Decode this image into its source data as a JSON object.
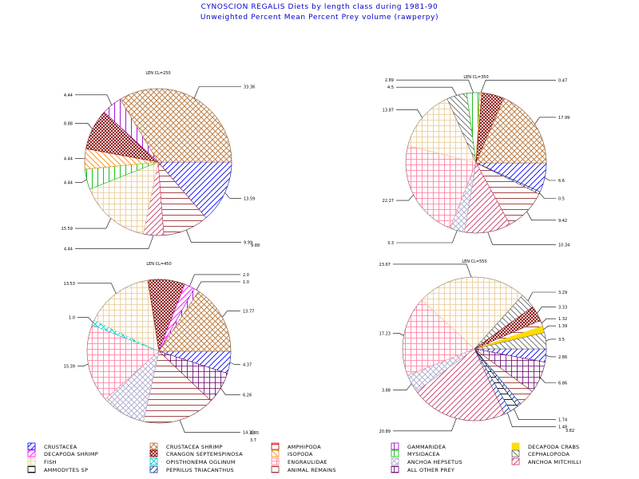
{
  "title": "CYNOSCION REGALIS Diets by length class during 1981-90",
  "subtitle": "Unweighted Percent Mean Percent Prey volume (rawperpy)",
  "colors": {
    "title": "#0000cc",
    "crustacea": "#0000ff",
    "crustacea_shrimp": "#b87333",
    "amphipoda": "#cc0000",
    "gammaridea": "#9900cc",
    "decapoda_crabs": "#ffdd00",
    "decapoda_shrimp": "#ff00ff",
    "crangon": "#800000",
    "isopoda": "#ff8800",
    "mysidacea": "#00bb00",
    "cephalopoda": "#666666",
    "fish": "#e8c890",
    "opisthonema": "#00cccc",
    "engraulidae": "#ff7799",
    "anchoa_hepsetus": "#aaaacc",
    "anchoa_mitchilli": "#cc3366",
    "ammodytes": "#000000",
    "peprilus": "#003399",
    "animal_remains": "#993333",
    "all_other": "#660066"
  },
  "chart_data": [
    {
      "type": "pie",
      "title": "LEN CL=250",
      "slices": [
        {
          "category": "crustacea",
          "value": 13.59,
          "label": "13.59"
        },
        {
          "category": "animal_remains",
          "value": 9.99,
          "label": "9.99"
        },
        {
          "category": "anchoa_mitchilli",
          "value": 4.44,
          "label": "4.44"
        },
        {
          "category": "fish",
          "value": 15.59,
          "label": "15.59"
        },
        {
          "category": "mysidacea",
          "value": 4.44,
          "label": "4.44"
        },
        {
          "category": "isopoda",
          "value": 4.44,
          "label": "4.44"
        },
        {
          "category": "crangon",
          "value": 8.88,
          "label": "8.88"
        },
        {
          "category": "gammaridea",
          "value": 4.44,
          "label": "4.44"
        },
        {
          "category": "crustacea_shrimp",
          "value": 33.36,
          "label": "33.36"
        }
      ],
      "slice_labels_extra": [
        "9.88"
      ]
    },
    {
      "type": "pie",
      "title": "LEN CL=350",
      "slices": [
        {
          "category": "crustacea",
          "value": 6.6,
          "label": "6.6"
        },
        {
          "category": "peprilus",
          "value": 0.5,
          "label": "0.5"
        },
        {
          "category": "animal_remains",
          "value": 9.42,
          "label": "9.42"
        },
        {
          "category": "anchoa_mitchilli",
          "value": 10.34,
          "label": "10.34"
        },
        {
          "category": "anchoa_hepsetus",
          "value": 3.3,
          "label": "3.3"
        },
        {
          "category": "engraulidae",
          "value": 22.27,
          "label": "22.27"
        },
        {
          "category": "fish",
          "value": 13.87,
          "label": "13.87"
        },
        {
          "category": "cephalopoda",
          "value": 4.5,
          "label": "4.5"
        },
        {
          "category": "mysidacea",
          "value": 2.89,
          "label": "2.89"
        },
        {
          "category": "isopoda",
          "value": 0.47,
          "label": "0.47"
        },
        {
          "category": "crangon",
          "value": 5.0,
          "label": ""
        },
        {
          "category": "crustacea_shrimp",
          "value": 17.99,
          "label": "17.99"
        }
      ]
    },
    {
      "type": "pie",
      "title": "LEN CL=450",
      "slices": [
        {
          "category": "crustacea",
          "value": 4.37,
          "label": "4.37"
        },
        {
          "category": "all_other",
          "value": 6.26,
          "label": "6.26"
        },
        {
          "category": "animal_remains",
          "value": 14.33,
          "label": "14.33"
        },
        {
          "category": "anchoa_hepsetus",
          "value": 8.7,
          "label": ""
        },
        {
          "category": "engraulidae",
          "value": 15.39,
          "label": "15.39"
        },
        {
          "category": "opisthonema",
          "value": 1.0,
          "label": "1.0"
        },
        {
          "category": "fish",
          "value": 13.53,
          "label": "13.53"
        },
        {
          "category": "crangon",
          "value": 7.3,
          "label": ""
        },
        {
          "category": "decapoda_shrimp",
          "value": 2.0,
          "label": "2.0"
        },
        {
          "category": "gammaridea",
          "value": 1.0,
          "label": "1.0"
        },
        {
          "category": "crustacea_shrimp",
          "value": 13.77,
          "label": "13.77"
        }
      ],
      "slice_labels_extra": [
        "8.85",
        "3.7"
      ]
    },
    {
      "type": "pie",
      "title": "LEN CL=550",
      "slices": [
        {
          "category": "crustacea",
          "value": 2.86,
          "label": "2.86"
        },
        {
          "category": "all_other",
          "value": 6.86,
          "label": "6.86"
        },
        {
          "category": "animal_remains",
          "value": 3.6,
          "label": ""
        },
        {
          "category": "peprilus",
          "value": 0.9,
          "label": ""
        },
        {
          "category": "ammodytes",
          "value": 1.74,
          "label": "1.74"
        },
        {
          "category": "peprilus",
          "value": 1.48,
          "label": "1.48"
        },
        {
          "category": "anchoa_mitchilli",
          "value": 20.89,
          "label": "20.89"
        },
        {
          "category": "anchoa_hepsetus",
          "value": 3.88,
          "label": "3.88"
        },
        {
          "category": "engraulidae",
          "value": 17.23,
          "label": "17.23"
        },
        {
          "category": "fish",
          "value": 23.67,
          "label": "23.67"
        },
        {
          "category": "cephalopoda",
          "value": 3.29,
          "label": "3.29"
        },
        {
          "category": "crangon",
          "value": 3.33,
          "label": "3.33"
        },
        {
          "category": "animal_remains",
          "value": 1.32,
          "label": "1.32"
        },
        {
          "category": "decapoda_crabs",
          "value": 1.39,
          "label": "1.39"
        },
        {
          "category": "cephalopoda",
          "value": 3.5,
          "label": "3.5"
        }
      ],
      "slice_labels_extra": [
        "3.82"
      ]
    }
  ],
  "legend": [
    {
      "key": "crustacea",
      "label": "CRUSTACEA",
      "pattern": "diag"
    },
    {
      "key": "crustacea_shrimp",
      "label": "CRUSTACEA SHRIMP",
      "pattern": "cross"
    },
    {
      "key": "amphipoda",
      "label": "AMPHIPODA",
      "pattern": "horiz"
    },
    {
      "key": "gammaridea",
      "label": "GAMMARIDEA",
      "pattern": "vert"
    },
    {
      "key": "decapoda_crabs",
      "label": "DECAPODA CRABS",
      "pattern": "solid"
    },
    {
      "key": "decapoda_shrimp",
      "label": "DECAPODA SHRIMP",
      "pattern": "diag"
    },
    {
      "key": "crangon",
      "label": "CRANGON SEPTEMSPINOSA",
      "pattern": "xdense"
    },
    {
      "key": "isopoda",
      "label": "ISOPODA",
      "pattern": "diag2"
    },
    {
      "key": "mysidacea",
      "label": "MYSIDACEA",
      "pattern": "vert"
    },
    {
      "key": "cephalopoda",
      "label": "CEPHALOPODA",
      "pattern": "diag2"
    },
    {
      "key": "fish",
      "label": "FISH",
      "pattern": "grid"
    },
    {
      "key": "opisthonema",
      "label": "OPISTHONEMA OGLINUM",
      "pattern": "cross"
    },
    {
      "key": "engraulidae",
      "label": "ENGRAULIDAE",
      "pattern": "grid"
    },
    {
      "key": "anchoa_hepsetus",
      "label": "ANCHOA HEPSETUS",
      "pattern": "cross"
    },
    {
      "key": "anchoa_mitchilli",
      "label": "ANCHOA MITCHILLI",
      "pattern": "diag"
    },
    {
      "key": "ammodytes",
      "label": "AMMODYTES SP",
      "pattern": "horiz"
    },
    {
      "key": "peprilus",
      "label": "PEPRILUS TRIACANTHUS",
      "pattern": "diag"
    },
    {
      "key": "animal_remains",
      "label": "ANIMAL REMAINS",
      "pattern": "horiz"
    },
    {
      "key": "all_other",
      "label": "ALL OTHER PREY",
      "pattern": "grid"
    }
  ]
}
